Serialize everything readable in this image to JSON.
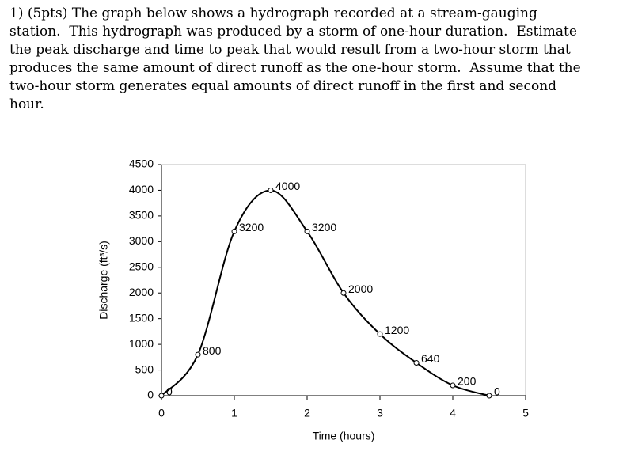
{
  "question": {
    "lines": [
      "1) (5pts) The graph below shows a hydrograph recorded at a stream-gauging",
      "station.  This hydrograph was produced by a storm of one-hour duration.  Estimate",
      "the peak discharge and time to peak that would result from a two-hour storm that",
      "produces the same amount of direct runoff as the one-hour storm.  Assume that the",
      "two-hour storm generates equal amounts of direct runoff in the first and second",
      "hour."
    ]
  },
  "chart_data": {
    "type": "line",
    "x_label": "Time (hours)",
    "y_label": "Discharge (ft³/s)",
    "x": [
      0,
      0.5,
      1,
      1.5,
      2,
      2.5,
      3,
      3.5,
      4,
      4.5
    ],
    "values": [
      0,
      800,
      3200,
      4000,
      3200,
      2000,
      1200,
      640,
      200,
      0
    ],
    "color": "#000000",
    "xlim": [
      0,
      5
    ],
    "xticks": [
      0,
      1,
      2,
      3,
      4,
      5
    ],
    "ylim": [
      0,
      4500
    ],
    "yticks": [
      0,
      500,
      1000,
      1500,
      2000,
      2500,
      3000,
      3500,
      4000,
      4500
    ]
  }
}
